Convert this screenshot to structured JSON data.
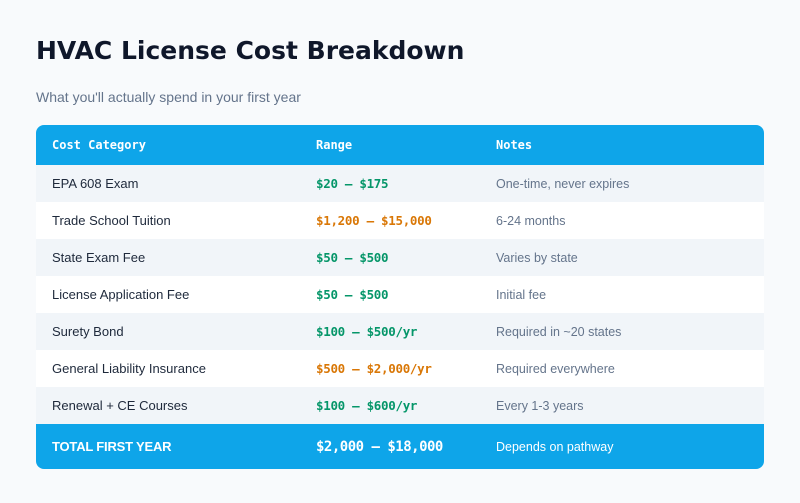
{
  "header": {
    "title": "HVAC License Cost Breakdown",
    "subtitle": "What you'll actually spend in your first year"
  },
  "colors": {
    "accent": "#0ea5e9",
    "low_cost": "#059669",
    "high_cost": "#d97706",
    "title": "#0f172a",
    "muted": "#64748b"
  },
  "table": {
    "columns": [
      "Cost Category",
      "Range",
      "Notes"
    ],
    "rows": [
      {
        "category": "EPA 608 Exam",
        "range": "$20 – $175",
        "notes": "One-time, never expires",
        "level": "green"
      },
      {
        "category": "Trade School Tuition",
        "range": "$1,200 – $15,000",
        "notes": "6-24 months",
        "level": "orange"
      },
      {
        "category": "State Exam Fee",
        "range": "$50 – $500",
        "notes": "Varies by state",
        "level": "green"
      },
      {
        "category": "License Application Fee",
        "range": "$50 – $500",
        "notes": "Initial fee",
        "level": "green"
      },
      {
        "category": "Surety Bond",
        "range": "$100 – $500/yr",
        "notes": "Required in ~20 states",
        "level": "green"
      },
      {
        "category": "General Liability Insurance",
        "range": "$500 – $2,000/yr",
        "notes": "Required everywhere",
        "level": "orange"
      },
      {
        "category": "Renewal + CE Courses",
        "range": "$100 – $600/yr",
        "notes": "Every 1-3 years",
        "level": "green"
      }
    ],
    "total": {
      "category": "TOTAL FIRST YEAR",
      "range": "$2,000 – $18,000",
      "notes": "Depends on pathway"
    }
  }
}
